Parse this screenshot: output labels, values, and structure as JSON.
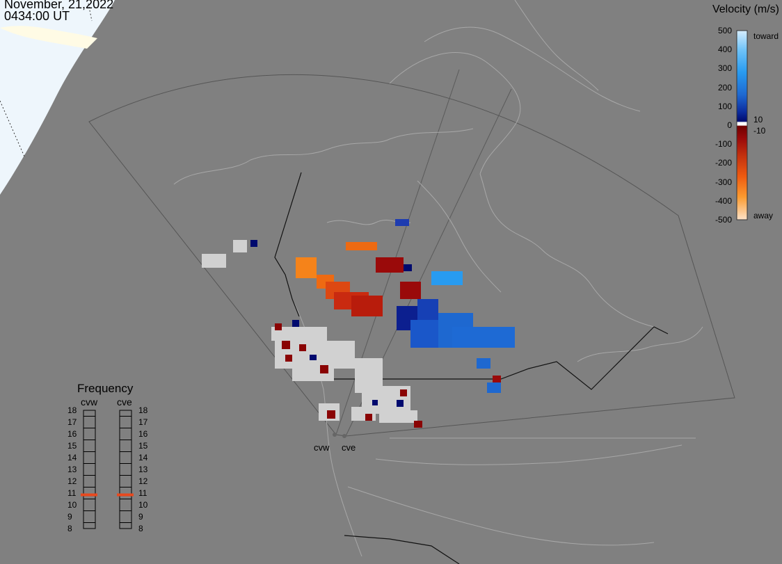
{
  "header": {
    "date": "November, 21,2022",
    "time": "0434:00 UT"
  },
  "velocity_scale": {
    "title": "Velocity (m/s)",
    "ticks": [
      "500",
      "400",
      "300",
      "200",
      "100",
      "0",
      "-100",
      "-200",
      "-300",
      "-400",
      "-500"
    ],
    "label_toward": "toward",
    "label_away": "away",
    "label_pos_threshold": "10",
    "label_neg_threshold": "-10"
  },
  "frequency_panel": {
    "title": "Frequency",
    "radar_left": "cvw",
    "radar_right": "cve",
    "levels": [
      "18",
      "17",
      "16",
      "15",
      "14",
      "13",
      "12",
      "11",
      "10",
      "9",
      "8"
    ],
    "cvw_frequency": 11,
    "cve_frequency": 11,
    "marker_color": "#e8491e"
  },
  "radar_sites": {
    "west_label": "cvw",
    "east_label": "cve"
  },
  "colors": {
    "map_background": "#808080",
    "land_outline": "#a8a8a8",
    "daylight": "#eef6fc",
    "ice": "#fffbe5",
    "toward_light": "#cfe9fb",
    "toward_dark": "#000a7e",
    "away_dark": "#7e0000",
    "away_light": "#fee0c8",
    "ground_scatter": "#d1d1d1"
  }
}
